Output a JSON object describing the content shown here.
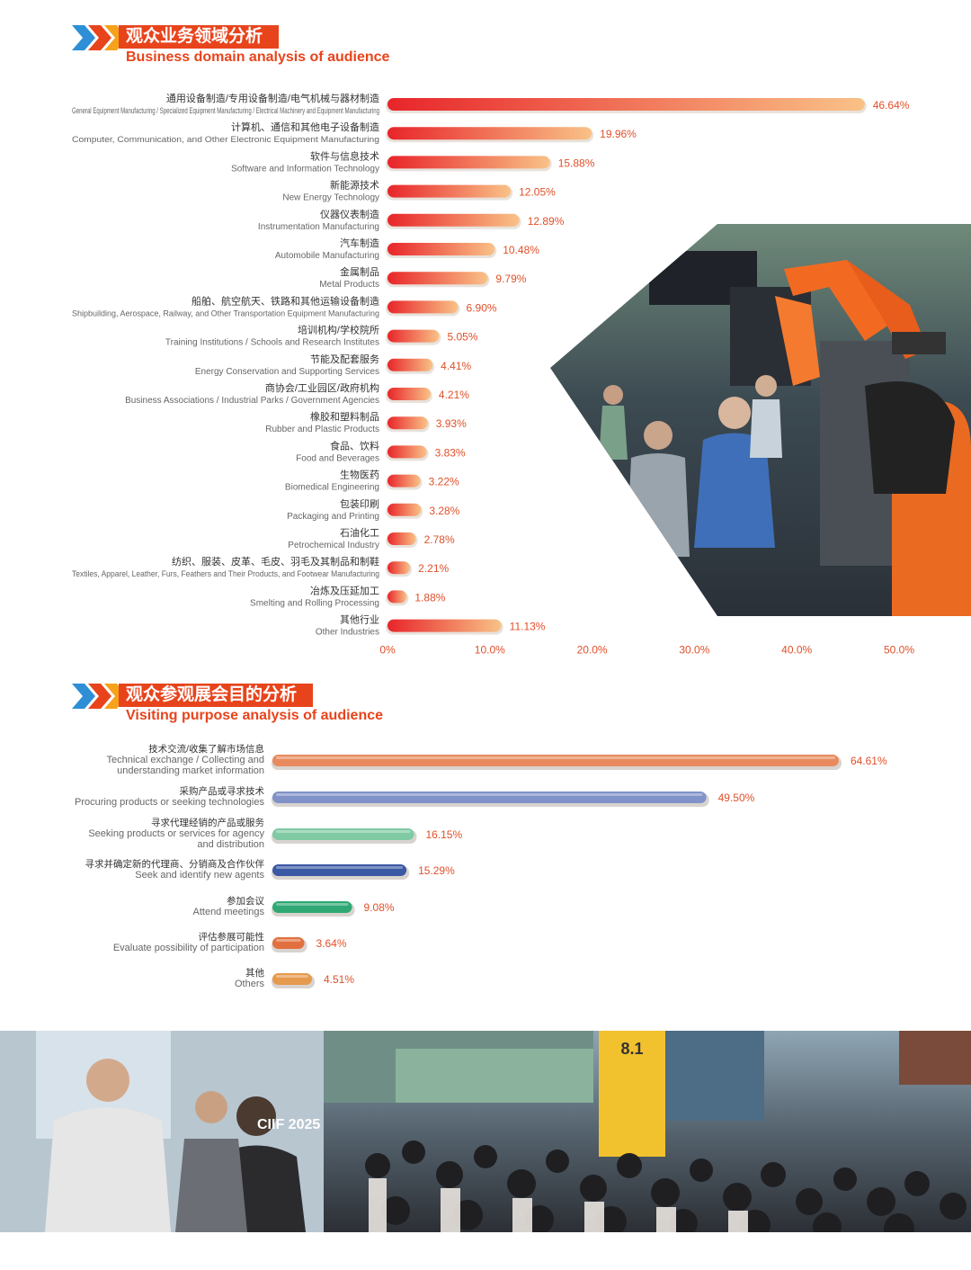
{
  "section1": {
    "title_cn": "观众业务领域分析",
    "title_en": "Business domain analysis of audience"
  },
  "section2": {
    "title_cn": "观众参观展会目的分析",
    "title_en": "Visiting purpose analysis of audience"
  },
  "photo_badge": {
    "brand": "CIIF 2025"
  },
  "chart_data": [
    {
      "type": "bar",
      "orientation": "horizontal",
      "categories_cn": [
        "通用设备制造/专用设备制造/电气机械与器材制造",
        "计算机、通信和其他电子设备制造",
        "软件与信息技术",
        "新能源技术",
        "仪器仪表制造",
        "汽车制造",
        "金属制品",
        "船舶、航空航天、铁路和其他运输设备制造",
        "培训机构/学校院所",
        "节能及配套服务",
        "商协会/工业园区/政府机构",
        "橡胶和塑料制品",
        "食品、饮料",
        "生物医药",
        "包装印刷",
        "石油化工",
        "纺织、服装、皮革、毛皮、羽毛及其制品和制鞋",
        "冶炼及压延加工",
        "其他行业"
      ],
      "categories_en": [
        "General Equipment Manufacturing / Specialized Equipment Manufacturing / Electrical Machinery and Equipment Manufacturing",
        "Computer, Communication, and Other Electronic Equipment Manufacturing",
        "Software and Information Technology",
        "New Energy Technology",
        "Instrumentation Manufacturing",
        "Automobile Manufacturing",
        "Metal Products",
        "Shipbuilding, Aerospace, Railway, and Other Transportation Equipment Manufacturing",
        "Training Institutions / Schools and Research Institutes",
        "Energy Conservation and Supporting Services",
        "Business Associations / Industrial Parks / Government Agencies",
        "Rubber and Plastic Products",
        "Food and Beverages",
        "Biomedical Engineering",
        "Packaging and Printing",
        "Petrochemical Industry",
        "Textiles, Apparel, Leather, Furs, Feathers and Their Products, and Footwear Manufacturing",
        "Smelting and Rolling Processing",
        "Other Industries"
      ],
      "values": [
        46.64,
        19.96,
        15.88,
        12.05,
        12.89,
        10.48,
        9.79,
        6.9,
        5.05,
        4.41,
        4.21,
        3.93,
        3.83,
        3.22,
        3.28,
        2.78,
        2.21,
        1.88,
        11.13
      ],
      "value_labels": [
        "46.64%",
        "19.96%",
        "15.88%",
        "12.05%",
        "12.89%",
        "10.48%",
        "9.79%",
        "6.90%",
        "5.05%",
        "4.41%",
        "4.21%",
        "3.93%",
        "3.83%",
        "3.22%",
        "3.28%",
        "2.78%",
        "2.21%",
        "1.88%",
        "11.13%"
      ],
      "xticks": [
        "0%",
        "10.0%",
        "20.0%",
        "30.0%",
        "40.0%",
        "50.0%"
      ],
      "xlim": [
        0,
        50
      ],
      "colors": {
        "gradient_start": "#e8252a",
        "gradient_end": "#f9c287",
        "label": "#e0502a"
      }
    },
    {
      "type": "bar",
      "orientation": "horizontal",
      "categories_cn": [
        "技术交流/收集了解市场信息",
        "采购产品或寻求技术",
        "寻求代理经销的产品或服务",
        "寻求并确定新的代理商、分销商及合作伙伴",
        "参加会议",
        "评估参展可能性",
        "其他"
      ],
      "categories_en": [
        [
          "Technical exchange / Collecting and",
          "understanding market information"
        ],
        [
          "Procuring products or seeking technologies"
        ],
        [
          "Seeking products or services for agency",
          "and distribution"
        ],
        [
          "Seek and identify new agents"
        ],
        [
          "Attend meetings"
        ],
        [
          "Evaluate possibility of participation"
        ],
        [
          "Others"
        ]
      ],
      "values": [
        64.61,
        49.5,
        16.15,
        15.29,
        9.08,
        3.64,
        4.51
      ],
      "value_labels": [
        "64.61%",
        "49.50%",
        "16.15%",
        "15.29%",
        "9.08%",
        "3.64%",
        "4.51%"
      ],
      "colors": [
        "#e98a5e",
        "#8192c8",
        "#7fcaa3",
        "#3b58a4",
        "#2fa874",
        "#e2703f",
        "#e59a4e"
      ],
      "label_color": "#e0502a"
    }
  ]
}
